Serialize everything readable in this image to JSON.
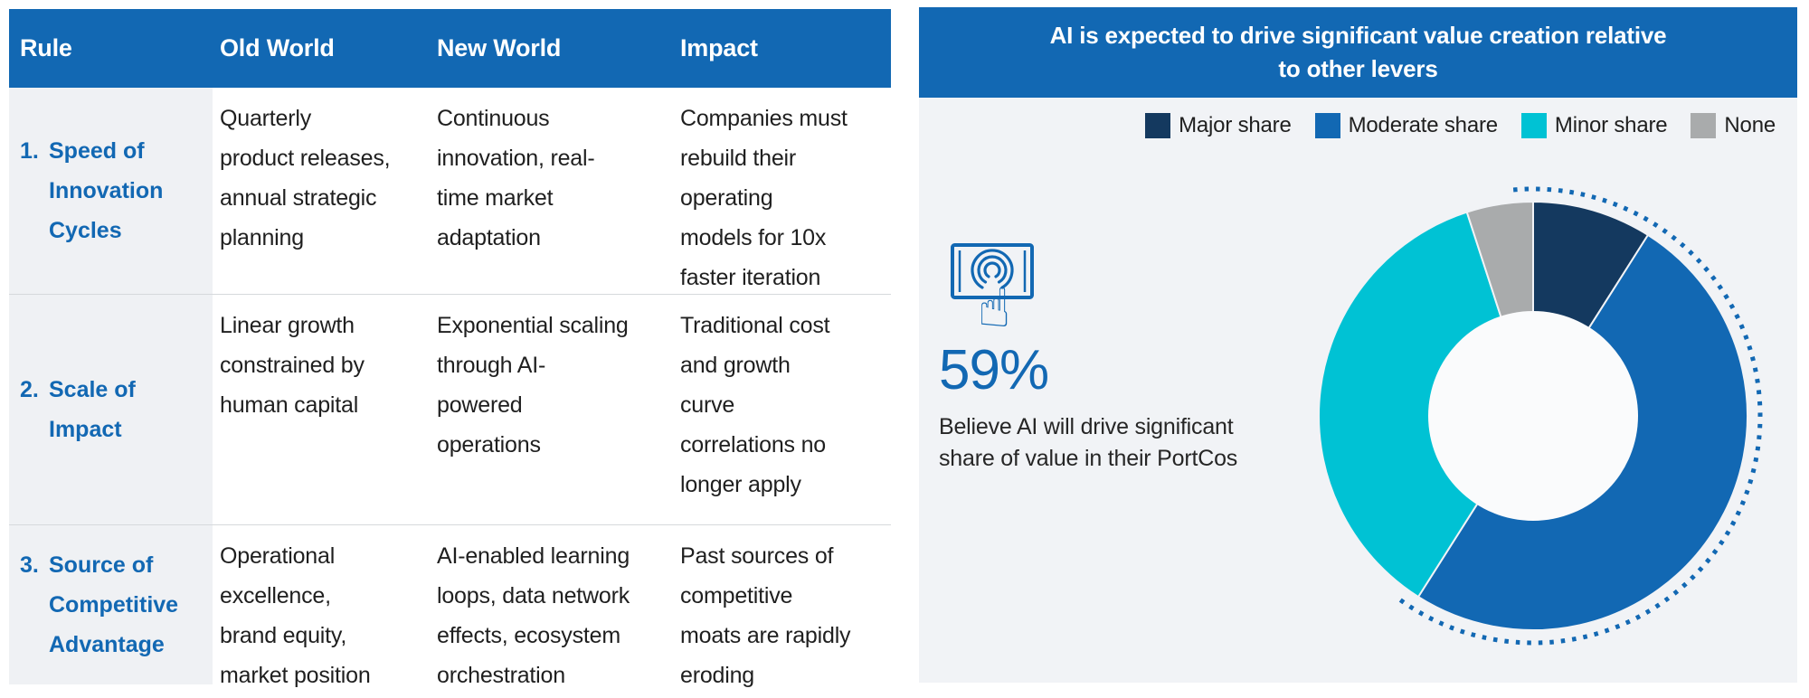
{
  "colors": {
    "accent": "#1268b3",
    "major_navy": "#14395f",
    "moderate_blue": "#1268b3",
    "minor_cyan": "#00c2d4",
    "none_gray": "#a9abac",
    "panel_background": "#f1f3f6",
    "rule_column_background": "#eff1f4",
    "donut_hole": "#fafbfc"
  },
  "table": {
    "headers": [
      "Rule",
      "Old World",
      "New World",
      "Impact"
    ],
    "rows": [
      {
        "num": "1.",
        "rule": "Speed of\nInnovation\nCycles",
        "old": "Quarterly\nproduct releases,\nannual strategic\nplanning",
        "new": "Continuous\ninnovation, real-\ntime market\nadaptation",
        "impact": "Companies must\nrebuild their\noperating\nmodels for 10x\nfaster iteration"
      },
      {
        "num": "2.",
        "rule": "Scale of\nImpact",
        "old": "Linear growth\nconstrained by\nhuman capital",
        "new": "Exponential scaling\nthrough AI-\npowered\noperations",
        "impact": "Traditional cost\nand growth\ncurve\ncorrelations no\nlonger apply"
      },
      {
        "num": "3.",
        "rule": "Source of\nCompetitive\nAdvantage",
        "old": "Operational\nexcellence,\nbrand equity,\nmarket position",
        "new": "AI-enabled learning\nloops, data network\neffects, ecosystem\norchestration",
        "impact": "Past sources of\ncompetitive\nmoats are rapidly\neroding"
      }
    ]
  },
  "panel": {
    "title": "AI is expected to drive significant value creation relative\nto other levers",
    "stat": {
      "icon": "touch-screen-icon",
      "value": "59%",
      "caption": "Believe AI will drive significant\nshare of value in their PortCos"
    }
  },
  "chart_data": {
    "type": "pie",
    "subtype": "donut",
    "title": "AI is expected to drive significant value creation relative to other levers",
    "units": "% of respondents",
    "series": [
      {
        "name": "Major share",
        "value": 9,
        "color": "#14395f"
      },
      {
        "name": "Moderate share",
        "value": 50,
        "color": "#1268b3"
      },
      {
        "name": "Minor share",
        "value": 36,
        "color": "#00c2d4"
      },
      {
        "name": "None",
        "value": 5,
        "color": "#a9abac"
      }
    ],
    "start_angle_deg": 0,
    "clockwise": true,
    "inner_radius_ratio": 0.49,
    "legend_position": "top-right",
    "highlight": {
      "label": "59%",
      "segments": [
        "Major share",
        "Moderate share"
      ],
      "style": "dotted-arc",
      "caption": "Believe AI will drive significant share of value in their PortCos"
    }
  }
}
